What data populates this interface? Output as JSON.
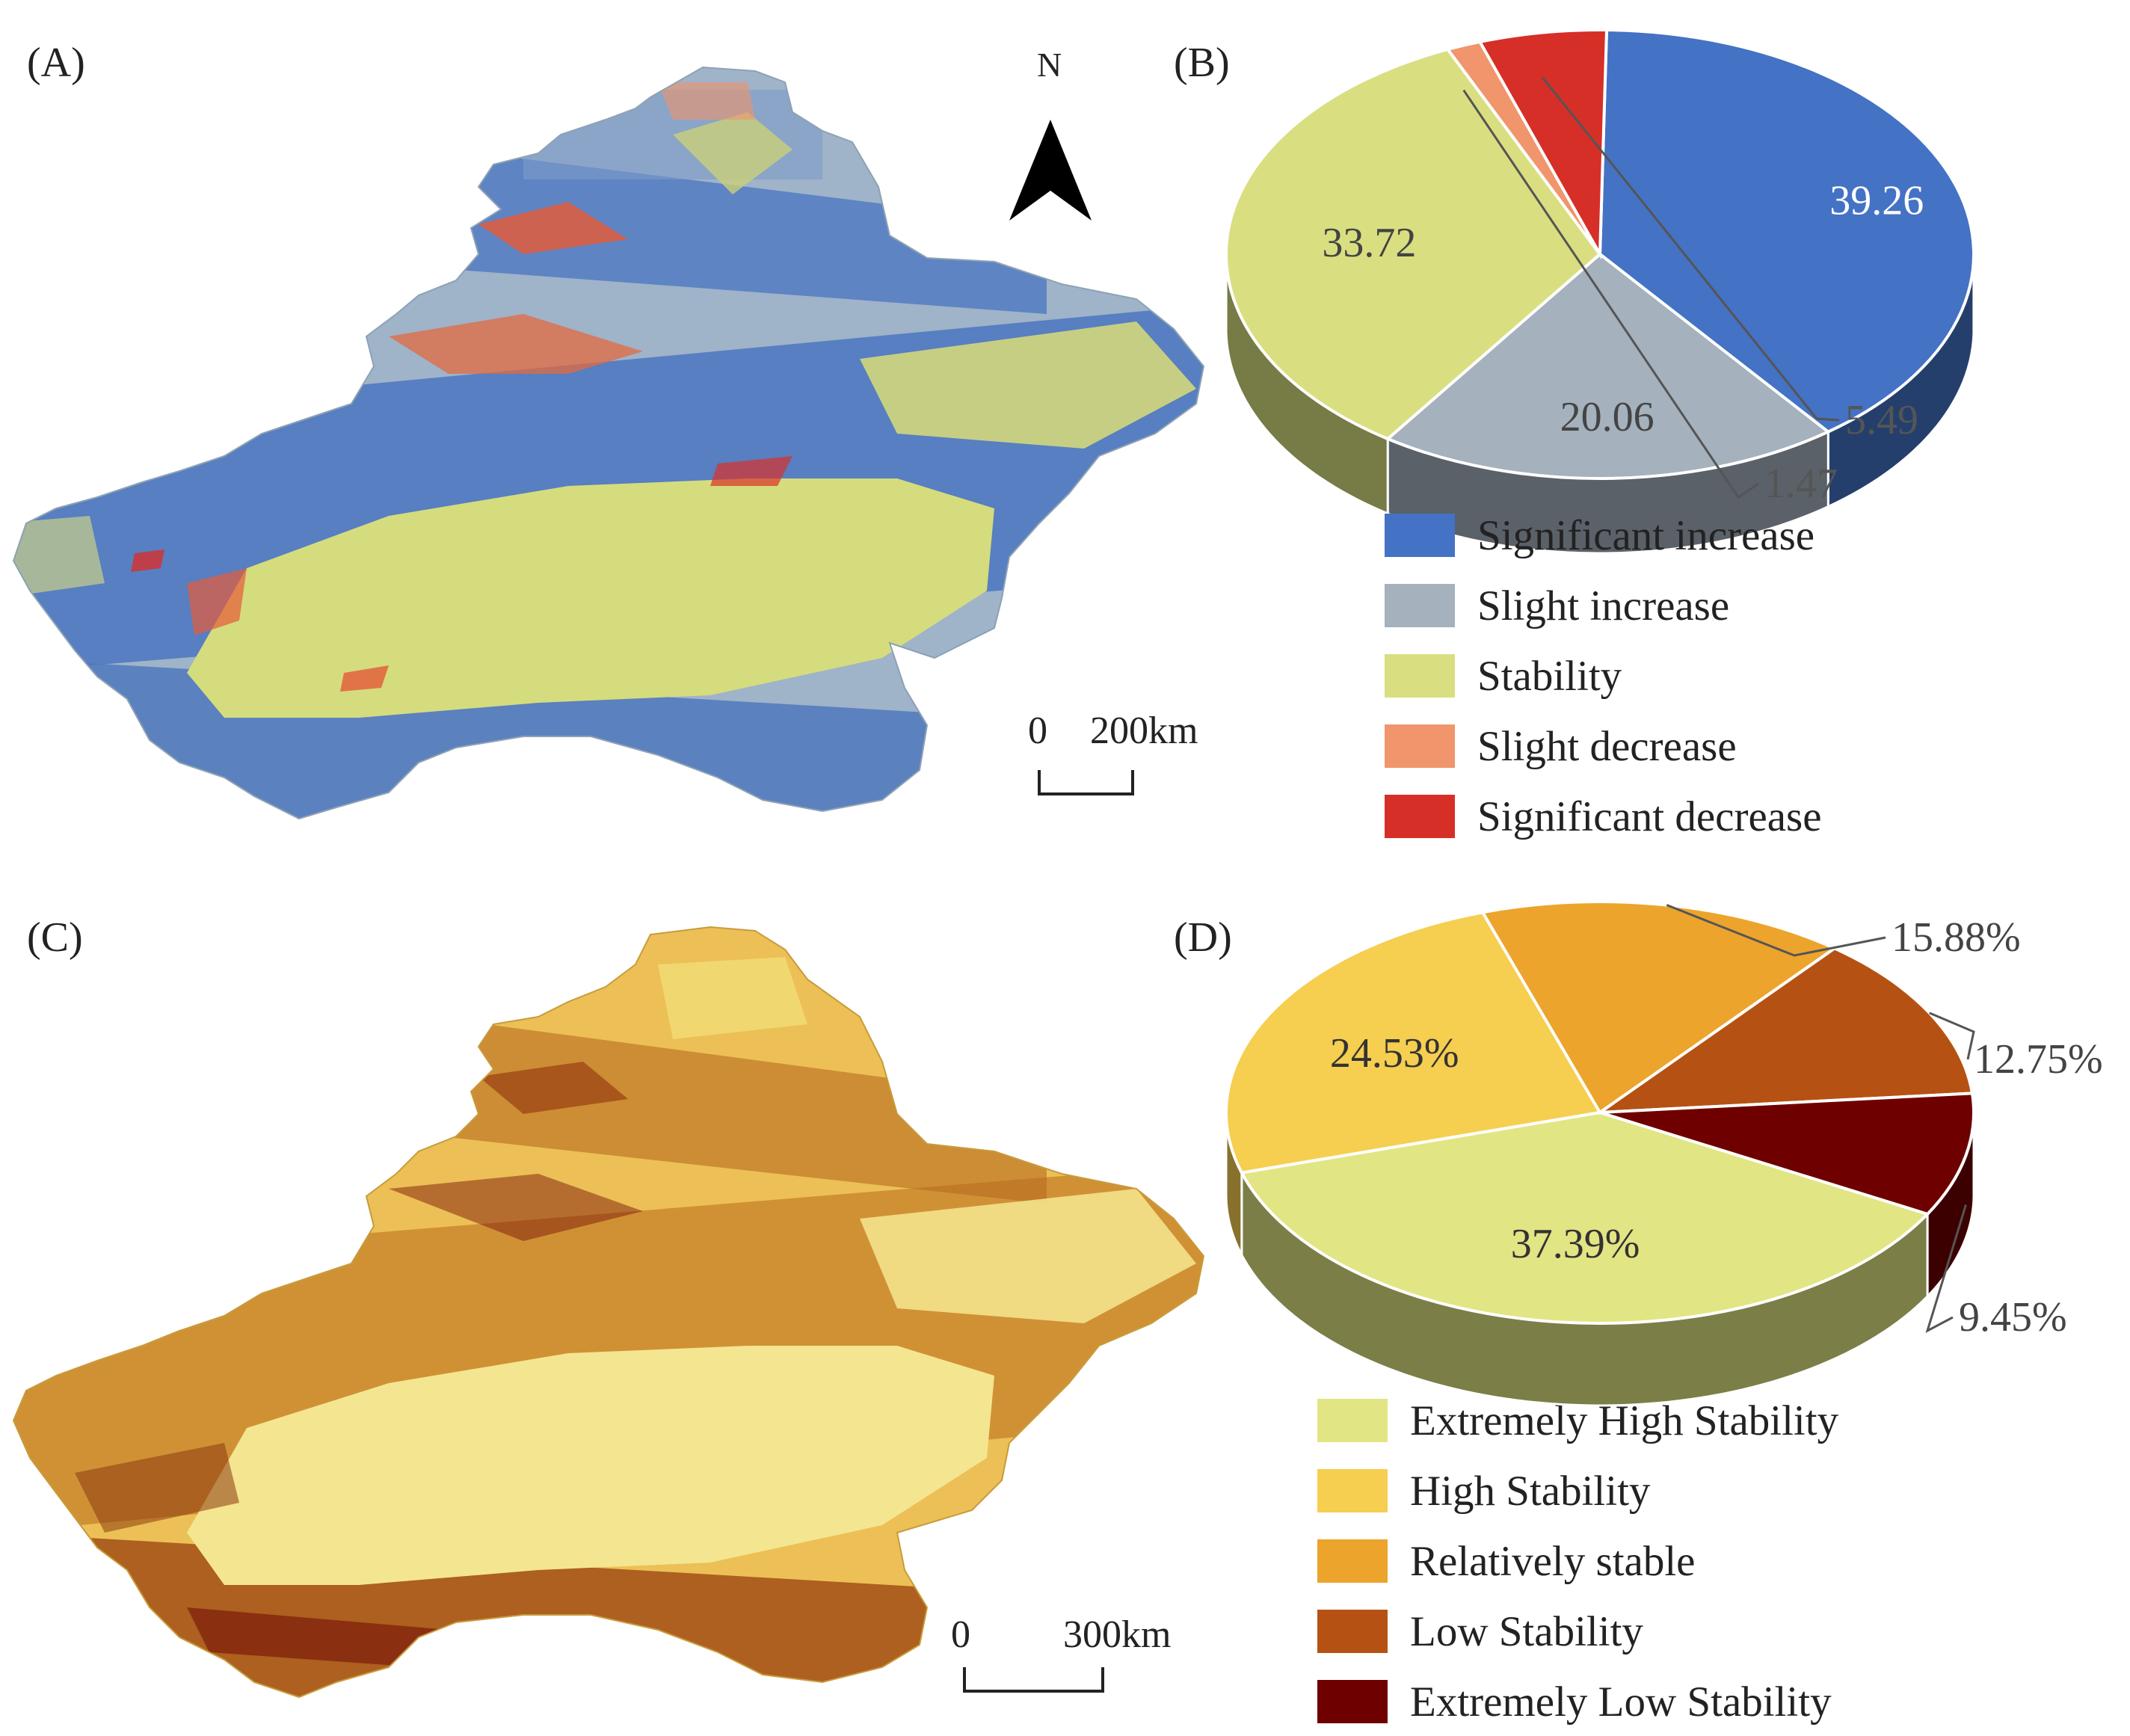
{
  "panels": {
    "a": {
      "label": "(A)"
    },
    "b": {
      "label": "(B)"
    },
    "c": {
      "label": "(C)"
    },
    "d": {
      "label": "(D)"
    }
  },
  "map_a": {
    "north_label": "N",
    "scale": {
      "zero": "0",
      "distance": "200km"
    },
    "palette": {
      "sig_inc": "#4472c4",
      "slight_inc": "#a5b4c4",
      "stable": "#d4dc7c",
      "slight_dec": "#f2936a",
      "sig_dec": "#d8302a"
    }
  },
  "map_c": {
    "scale": {
      "zero": "0",
      "distance": "300km"
    },
    "palette": {
      "ext_high": "#f2e58a",
      "high": "#f6d65a",
      "rel": "#e9a22c",
      "low": "#b15412",
      "ext_low": "#6e0a04"
    }
  },
  "chart_data": [
    {
      "type": "pie",
      "title": "",
      "labels": [
        "Significant increase",
        "Slight increase",
        "Stability",
        "Slight decrease",
        "Significant decrease"
      ],
      "values": [
        39.26,
        20.06,
        33.72,
        1.47,
        5.49
      ],
      "display_values": [
        "39.26",
        "20.06",
        "33.72",
        "1.47",
        "5.49"
      ],
      "colors": [
        "#4472c4",
        "#a5b1bd",
        "#d9df80",
        "#f0956c",
        "#d62f27"
      ],
      "legend_position": "bottom"
    },
    {
      "type": "pie",
      "title": "",
      "labels": [
        "Extremely High Stability",
        "High Stability",
        "Relatively stable",
        "Low Stability",
        "Extremely Low Stability"
      ],
      "values": [
        37.39,
        24.53,
        15.88,
        12.75,
        9.45
      ],
      "display_values": [
        "37.39%",
        "24.53%",
        "15.88%",
        "12.75%",
        "9.45%"
      ],
      "colors": [
        "#e2e583",
        "#f6ce50",
        "#eca42c",
        "#b55213",
        "#6f0000"
      ],
      "legend_position": "bottom"
    }
  ]
}
